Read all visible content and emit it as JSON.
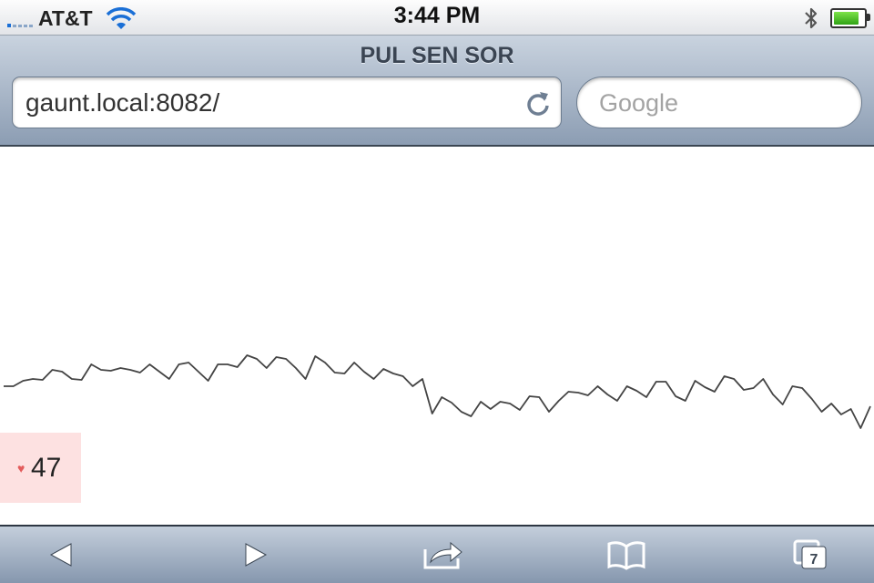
{
  "status": {
    "carrier": "AT&T",
    "time": "3:44 PM",
    "battery_level": 0.9
  },
  "browser": {
    "page_title": "PUL SEN SOR",
    "url": "gaunt.local:8082/",
    "search_placeholder": "Google",
    "tab_count": "7"
  },
  "icons": [
    "signal-bars-icon",
    "wifi-icon",
    "bluetooth-icon",
    "battery-icon",
    "reload-icon",
    "back-icon",
    "forward-icon",
    "share-icon",
    "bookmarks-icon",
    "tabs-icon",
    "heart-icon"
  ],
  "sensor": {
    "bpm": "47"
  },
  "chart_data": {
    "type": "line",
    "title": "",
    "xlabel": "",
    "ylabel": "",
    "grid": false,
    "line_color": "#444444",
    "series": [
      {
        "values": [
          152,
          152,
          158,
          160,
          159,
          170,
          168,
          160,
          159,
          176,
          170,
          169,
          172,
          170,
          167,
          176,
          168,
          160,
          176,
          178,
          168,
          158,
          176,
          176,
          173,
          186,
          182,
          172,
          184,
          182,
          172,
          160,
          185,
          178,
          167,
          166,
          178,
          168,
          160,
          171,
          166,
          163,
          152,
          160,
          122,
          140,
          134,
          124,
          119,
          135,
          127,
          135,
          133,
          126,
          141,
          140,
          124,
          136,
          146,
          145,
          142,
          152,
          143,
          136,
          152,
          147,
          140,
          157,
          157,
          141,
          136,
          158,
          151,
          146,
          163,
          160,
          148,
          150,
          160,
          143,
          132,
          152,
          150,
          138,
          124,
          133,
          121,
          127,
          106,
          130
        ]
      }
    ],
    "ylim": [
      0,
      415
    ]
  }
}
